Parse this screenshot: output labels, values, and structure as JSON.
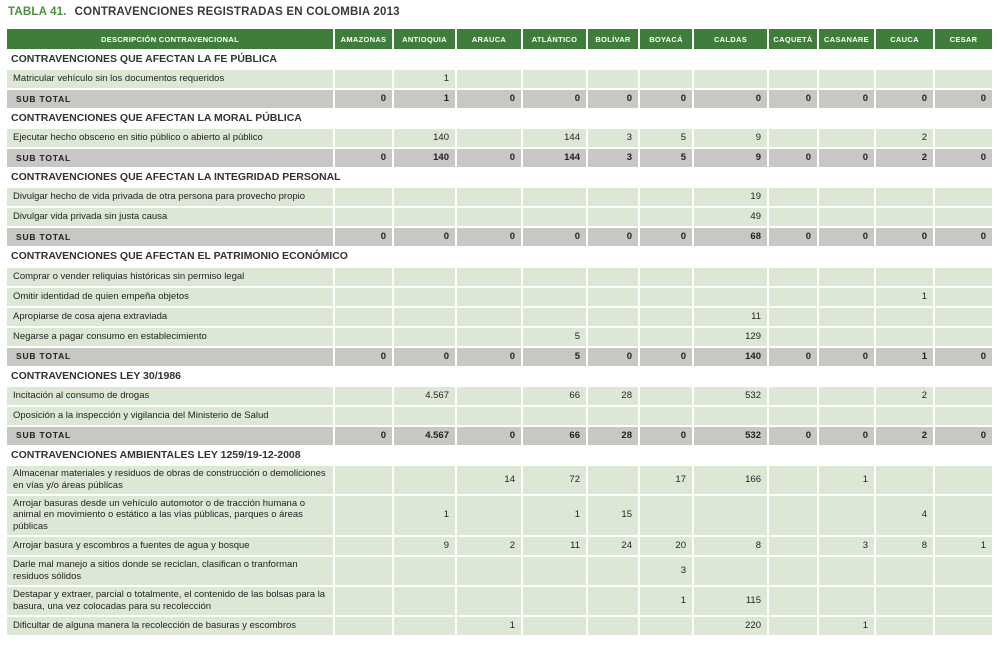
{
  "caption": {
    "table_number": "TABLA 41.",
    "title": "CONTRAVENCIONES REGISTRADAS EN COLOMBIA 2013"
  },
  "colors": {
    "caption_green": "#4a9338",
    "header_green": "#3f7e3a",
    "row_light_green": "#dce8d5",
    "subtotal_gray": "#c7c7c4"
  },
  "table": {
    "columns": [
      "DESCRIPCIÓN CONTRAVENCIONAL",
      "AMAZONAS",
      "ANTIOQUIA",
      "ARAUCA",
      "ATLÁNTICO",
      "BOLÍVAR",
      "BOYACÁ",
      "CALDAS",
      "CAQUETÁ",
      "CASANARE",
      "CAUCA",
      "CESAR"
    ],
    "subtotal_label": "SUB TOTAL",
    "sections": [
      {
        "header": "CONTRAVENCIONES QUE AFECTAN LA FE PÚBLICA",
        "rows": [
          {
            "label": "Matricular vehículo sin los documentos requeridos",
            "values": [
              "",
              "1",
              "",
              "",
              "",
              "",
              "",
              "",
              "",
              "",
              ""
            ]
          }
        ],
        "subtotal": [
          "0",
          "1",
          "0",
          "0",
          "0",
          "0",
          "0",
          "0",
          "0",
          "0",
          "0"
        ]
      },
      {
        "header": "CONTRAVENCIONES QUE AFECTAN LA MORAL PÚBLICA",
        "rows": [
          {
            "label": "Ejecutar hecho obsceno en sitio público o abierto al público",
            "values": [
              "",
              "140",
              "",
              "144",
              "3",
              "5",
              "9",
              "",
              "",
              "2",
              ""
            ]
          }
        ],
        "subtotal": [
          "0",
          "140",
          "0",
          "144",
          "3",
          "5",
          "9",
          "0",
          "0",
          "2",
          "0"
        ]
      },
      {
        "header": "CONTRAVENCIONES QUE AFECTAN LA INTEGRIDAD PERSONAL",
        "rows": [
          {
            "label": "Divulgar hecho de vida privada de otra persona para provecho propio",
            "values": [
              "",
              "",
              "",
              "",
              "",
              "",
              "19",
              "",
              "",
              "",
              ""
            ]
          },
          {
            "label": "Divulgar vida privada sin justa causa",
            "values": [
              "",
              "",
              "",
              "",
              "",
              "",
              "49",
              "",
              "",
              "",
              ""
            ]
          }
        ],
        "subtotal": [
          "0",
          "0",
          "0",
          "0",
          "0",
          "0",
          "68",
          "0",
          "0",
          "0",
          "0"
        ]
      },
      {
        "header": "CONTRAVENCIONES QUE AFECTAN EL PATRIMONIO ECONÓMICO",
        "rows": [
          {
            "label": "Comprar o vender reliquias históricas sin permiso legal",
            "values": [
              "",
              "",
              "",
              "",
              "",
              "",
              "",
              "",
              "",
              "",
              ""
            ]
          },
          {
            "label": "Omitir identidad de quien empeña objetos",
            "values": [
              "",
              "",
              "",
              "",
              "",
              "",
              "",
              "",
              "",
              "1",
              ""
            ]
          },
          {
            "label": "Apropiarse de cosa ajena extraviada",
            "values": [
              "",
              "",
              "",
              "",
              "",
              "",
              "11",
              "",
              "",
              "",
              ""
            ]
          },
          {
            "label": "Negarse a pagar consumo en establecimiento",
            "values": [
              "",
              "",
              "",
              "5",
              "",
              "",
              "129",
              "",
              "",
              "",
              ""
            ]
          }
        ],
        "subtotal": [
          "0",
          "0",
          "0",
          "5",
          "0",
          "0",
          "140",
          "0",
          "0",
          "1",
          "0"
        ]
      },
      {
        "header": "CONTRAVENCIONES LEY 30/1986",
        "rows": [
          {
            "label": "Incitación al consumo de drogas",
            "values": [
              "",
              "4.567",
              "",
              "66",
              "28",
              "",
              "532",
              "",
              "",
              "2",
              ""
            ]
          },
          {
            "label": "Oposición a la inspección y vigilancia del Ministerio de Salud",
            "values": [
              "",
              "",
              "",
              "",
              "",
              "",
              "",
              "",
              "",
              "",
              ""
            ]
          }
        ],
        "subtotal": [
          "0",
          "4.567",
          "0",
          "66",
          "28",
          "0",
          "532",
          "0",
          "0",
          "2",
          "0"
        ]
      },
      {
        "header": "CONTRAVENCIONES AMBIENTALES LEY 1259/19-12-2008",
        "rows": [
          {
            "label": "Almacenar materiales y residuos de obras de construcción o demoliciones en vías y/o áreas públicas",
            "values": [
              "",
              "",
              "14",
              "72",
              "",
              "17",
              "166",
              "",
              "1",
              "",
              ""
            ]
          },
          {
            "label": "Arrojar basuras desde un vehículo automotor o de tracción humana o animal en movimiento o estático a las vías públicas, parques o áreas públicas",
            "values": [
              "",
              "1",
              "",
              "1",
              "15",
              "",
              "",
              "",
              "",
              "4",
              ""
            ]
          },
          {
            "label": "Arrojar basura y escombros a fuentes de agua y bosque",
            "values": [
              "",
              "9",
              "2",
              "11",
              "24",
              "20",
              "8",
              "",
              "3",
              "8",
              "1"
            ]
          },
          {
            "label": "Darle mal manejo a sitios donde se reciclan, clasifican o tranforman residuos sólidos",
            "values": [
              "",
              "",
              "",
              "",
              "",
              "3",
              "",
              "",
              "",
              "",
              ""
            ]
          },
          {
            "label": "Destapar y extraer, parcial o totalmente, el contenido de las bolsas para la basura, una vez colocadas para su recolección",
            "values": [
              "",
              "",
              "",
              "",
              "",
              "1",
              "115",
              "",
              "",
              "",
              ""
            ]
          },
          {
            "label": "Dificultar de alguna manera la recolección de basuras y escombros",
            "values": [
              "",
              "",
              "1",
              "",
              "",
              "",
              "220",
              "",
              "1",
              "",
              ""
            ]
          }
        ],
        "subtotal": null
      }
    ]
  }
}
